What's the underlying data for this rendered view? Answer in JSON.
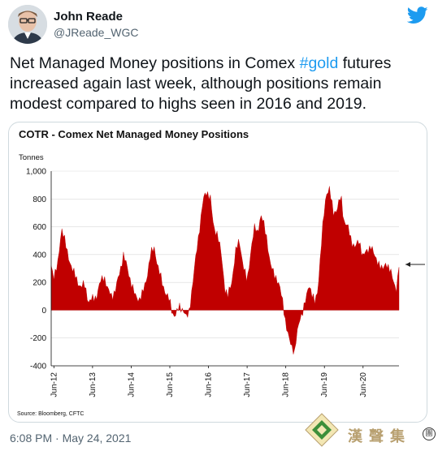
{
  "user": {
    "name": "John Reade",
    "handle": "@JReade_WGC"
  },
  "tweet": {
    "text_before": "Net Managed Money positions in Comex ",
    "hashtag": "#gold",
    "text_after": " futures increased again last week, although positions remain modest compared to highs seen in 2016 and 2019.",
    "timestamp": "6:08 PM · May 24, 2021"
  },
  "watermark": {
    "text": "漢聲集",
    "circle": "團"
  },
  "colors": {
    "accent": "#1d9bf0",
    "bar": "#c00000"
  },
  "chart_data": {
    "type": "area",
    "title": "COTR - Comex Net Managed Money Positions",
    "ylabel": "Tonnes",
    "xlabel": "",
    "ylim": [
      -400,
      1000
    ],
    "yticks": [
      "1,000",
      "800",
      "600",
      "400",
      "200",
      "0",
      "-200",
      "-400"
    ],
    "ytick_values": [
      1000,
      800,
      600,
      400,
      200,
      0,
      -200,
      -400
    ],
    "xtick_labels": [
      "Jun-12",
      "Jun-13",
      "Jun-14",
      "Jun-15",
      "Jun-16",
      "Jun-17",
      "Jun-18",
      "Jun-19",
      "Jun-20"
    ],
    "xtick_years": [
      2012.45,
      2013.45,
      2014.45,
      2015.45,
      2016.45,
      2017.45,
      2018.45,
      2019.45,
      2020.45
    ],
    "x_range": [
      2012.38,
      2021.38
    ],
    "source": "Source: Bloomberg, CFTC",
    "annotation": "arrow-pointing-to-latest-value",
    "grid": true,
    "series": [
      {
        "x": [
          2012.38,
          2012.45,
          2012.55,
          2012.65,
          2012.72,
          2012.8,
          2012.88,
          2012.95,
          2013.05,
          2013.15,
          2013.25,
          2013.35,
          2013.45,
          2013.55,
          2013.65,
          2013.75,
          2013.85,
          2013.95,
          2014.05,
          2014.15,
          2014.25,
          2014.35,
          2014.45,
          2014.55,
          2014.65,
          2014.75,
          2014.85,
          2014.95,
          2015.05,
          2015.15,
          2015.25,
          2015.35,
          2015.45,
          2015.52,
          2015.6,
          2015.7,
          2015.78,
          2015.88,
          2015.95,
          2016.05,
          2016.15,
          2016.25,
          2016.32,
          2016.4,
          2016.5,
          2016.58,
          2016.68,
          2016.78,
          2016.88,
          2016.95,
          2017.05,
          2017.15,
          2017.25,
          2017.35,
          2017.45,
          2017.55,
          2017.65,
          2017.72,
          2017.8,
          2017.88,
          2017.95,
          2018.05,
          2018.12,
          2018.2,
          2018.3,
          2018.38,
          2018.45,
          2018.52,
          2018.6,
          2018.68,
          2018.75,
          2018.82,
          2018.9,
          2018.98,
          2019.05,
          2019.12,
          2019.2,
          2019.28,
          2019.35,
          2019.42,
          2019.5,
          2019.58,
          2019.68,
          2019.78,
          2019.88,
          2019.95,
          2020.05,
          2020.15,
          2020.25,
          2020.35,
          2020.45,
          2020.55,
          2020.65,
          2020.75,
          2020.85,
          2020.95,
          2021.05,
          2021.15,
          2021.25,
          2021.32,
          2021.38
        ],
        "y": [
          320,
          250,
          320,
          600,
          520,
          400,
          340,
          280,
          210,
          170,
          180,
          60,
          80,
          100,
          200,
          250,
          140,
          100,
          150,
          270,
          400,
          300,
          200,
          100,
          80,
          120,
          230,
          400,
          450,
          300,
          200,
          120,
          60,
          -20,
          -40,
          30,
          10,
          -60,
          0,
          200,
          450,
          650,
          800,
          860,
          800,
          600,
          550,
          400,
          150,
          100,
          200,
          420,
          500,
          320,
          200,
          440,
          600,
          560,
          680,
          620,
          540,
          320,
          280,
          240,
          150,
          60,
          -100,
          -200,
          -250,
          -300,
          -160,
          -50,
          0,
          80,
          200,
          120,
          50,
          150,
          400,
          640,
          850,
          870,
          700,
          730,
          820,
          650,
          600,
          500,
          450,
          500,
          390,
          420,
          470,
          380,
          350,
          280,
          350,
          280,
          200,
          150,
          320
        ]
      }
    ]
  }
}
